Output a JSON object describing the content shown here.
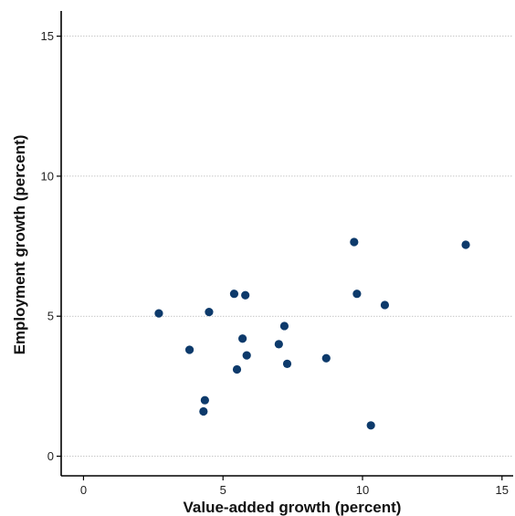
{
  "chart_data": {
    "type": "scatter",
    "xlabel": "Value-added growth (percent)",
    "ylabel": "Employment growth  (percent)",
    "xlim": [
      -0.8,
      15.4
    ],
    "ylim": [
      -0.7,
      15.9
    ],
    "x_ticks": [
      0,
      5,
      10,
      15
    ],
    "y_ticks": [
      0,
      5,
      10,
      15
    ],
    "x_tick_labels": [
      "0",
      "5",
      "10",
      "15"
    ],
    "y_tick_labels": [
      "0",
      "5",
      "10",
      "15"
    ],
    "grid": "horizontal dotted",
    "point_color": "#0d3a6b",
    "series": [
      {
        "points": [
          {
            "x": 2.7,
            "y": 5.1
          },
          {
            "x": 3.8,
            "y": 3.8
          },
          {
            "x": 4.3,
            "y": 1.6
          },
          {
            "x": 4.35,
            "y": 2.0
          },
          {
            "x": 4.5,
            "y": 5.15
          },
          {
            "x": 5.4,
            "y": 5.8
          },
          {
            "x": 5.5,
            "y": 3.1
          },
          {
            "x": 5.7,
            "y": 4.2
          },
          {
            "x": 5.8,
            "y": 5.75
          },
          {
            "x": 5.85,
            "y": 3.6
          },
          {
            "x": 7.0,
            "y": 4.0
          },
          {
            "x": 7.2,
            "y": 4.65
          },
          {
            "x": 7.3,
            "y": 3.3
          },
          {
            "x": 8.7,
            "y": 3.5
          },
          {
            "x": 9.7,
            "y": 7.65
          },
          {
            "x": 9.8,
            "y": 5.8
          },
          {
            "x": 10.3,
            "y": 1.1
          },
          {
            "x": 10.8,
            "y": 5.4
          },
          {
            "x": 13.7,
            "y": 7.55
          }
        ]
      }
    ]
  }
}
